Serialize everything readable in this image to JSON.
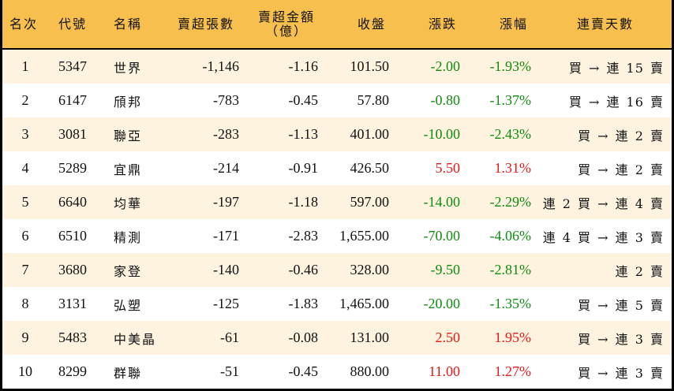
{
  "colors": {
    "header_bg": "#F7BF4E",
    "row_odd_bg": "#FDF3DE",
    "row_even_bg": "#FFFFFF",
    "border": "#000000",
    "down_color": "#108A10",
    "up_color": "#E81818"
  },
  "table": {
    "headers": {
      "rank": "名次",
      "code": "代號",
      "name": "名稱",
      "net_sell_lots": "賣超張數",
      "net_sell_amount_line1": "賣超金額",
      "net_sell_amount_line2": "（億）",
      "close": "收盤",
      "change": "漲跌",
      "change_pct": "漲幅",
      "streak": "連賣天數"
    },
    "rows": [
      {
        "rank": "1",
        "code": "5347",
        "name": "世界",
        "lots": "-1,146",
        "amount": "-1.16",
        "close": "101.50",
        "change": "-2.00",
        "pct": "-1.93%",
        "dir": "down",
        "streak": "買 → 連 15 賣"
      },
      {
        "rank": "2",
        "code": "6147",
        "name": "頎邦",
        "lots": "-783",
        "amount": "-0.45",
        "close": "57.80",
        "change": "-0.80",
        "pct": "-1.37%",
        "dir": "down",
        "streak": "買 → 連 16 賣"
      },
      {
        "rank": "3",
        "code": "3081",
        "name": "聯亞",
        "lots": "-283",
        "amount": "-1.13",
        "close": "401.00",
        "change": "-10.00",
        "pct": "-2.43%",
        "dir": "down",
        "streak": "買 → 連 2 賣"
      },
      {
        "rank": "4",
        "code": "5289",
        "name": "宜鼎",
        "lots": "-214",
        "amount": "-0.91",
        "close": "426.50",
        "change": "5.50",
        "pct": "1.31%",
        "dir": "up",
        "streak": "買 → 連 2 賣"
      },
      {
        "rank": "5",
        "code": "6640",
        "name": "均華",
        "lots": "-197",
        "amount": "-1.18",
        "close": "597.00",
        "change": "-14.00",
        "pct": "-2.29%",
        "dir": "down",
        "streak": "連 2 買 → 連 4 賣"
      },
      {
        "rank": "6",
        "code": "6510",
        "name": "精測",
        "lots": "-171",
        "amount": "-2.83",
        "close": "1,655.00",
        "change": "-70.00",
        "pct": "-4.06%",
        "dir": "down",
        "streak": "連 4 買 → 連 3 賣"
      },
      {
        "rank": "7",
        "code": "3680",
        "name": "家登",
        "lots": "-140",
        "amount": "-0.46",
        "close": "328.00",
        "change": "-9.50",
        "pct": "-2.81%",
        "dir": "down",
        "streak": "連 2 賣"
      },
      {
        "rank": "8",
        "code": "3131",
        "name": "弘塑",
        "lots": "-125",
        "amount": "-1.83",
        "close": "1,465.00",
        "change": "-20.00",
        "pct": "-1.35%",
        "dir": "down",
        "streak": "買 → 連 5 賣"
      },
      {
        "rank": "9",
        "code": "5483",
        "name": "中美晶",
        "lots": "-61",
        "amount": "-0.08",
        "close": "131.00",
        "change": "2.50",
        "pct": "1.95%",
        "dir": "up",
        "streak": "買 → 連 3 賣"
      },
      {
        "rank": "10",
        "code": "8299",
        "name": "群聯",
        "lots": "-51",
        "amount": "-0.45",
        "close": "880.00",
        "change": "11.00",
        "pct": "1.27%",
        "dir": "up",
        "streak": "買 → 連 3 賣"
      }
    ]
  }
}
